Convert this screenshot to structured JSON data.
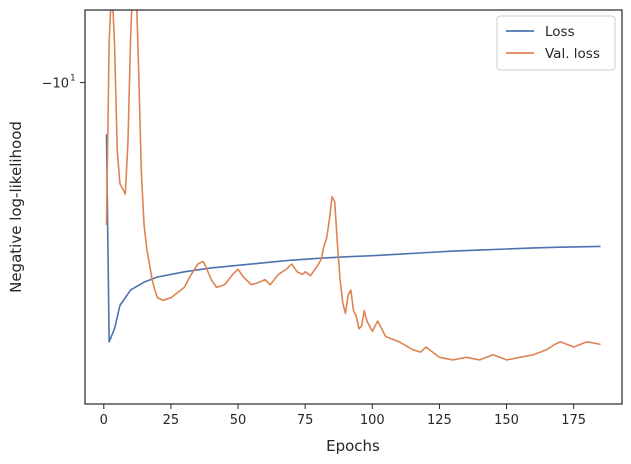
{
  "chart_data": {
    "type": "line",
    "title": "",
    "xlabel": "Epochs",
    "ylabel": "Negative log-likelihood",
    "xlim": [
      -7,
      193
    ],
    "ylim": [
      -7.2,
      -22.4
    ],
    "y_scale": "symlog-like (inverted, decreasing downward)",
    "grid": false,
    "legend_position": "top-right",
    "x_ticks": [
      0,
      25,
      50,
      75,
      100,
      125,
      150,
      175
    ],
    "x_tick_labels": [
      "0",
      "25",
      "50",
      "75",
      "100",
      "125",
      "150",
      "175"
    ],
    "y_ticks": [
      -10
    ],
    "y_tick_labels": [
      "−10"
    ],
    "y_tick_sup": "1",
    "series": [
      {
        "name": "Loss",
        "color": "#4c72b0",
        "x": [
          1,
          2,
          4,
          6,
          10,
          15,
          20,
          30,
          40,
          50,
          60,
          70,
          80,
          85,
          90,
          100,
          110,
          120,
          130,
          140,
          150,
          160,
          170,
          180,
          185
        ],
        "y": [
          -12.0,
          -20.0,
          -19.5,
          -18.6,
          -18.0,
          -17.7,
          -17.5,
          -17.3,
          -17.15,
          -17.05,
          -16.95,
          -16.85,
          -16.78,
          -16.75,
          -16.72,
          -16.68,
          -16.62,
          -16.56,
          -16.5,
          -16.46,
          -16.42,
          -16.38,
          -16.35,
          -16.33,
          -16.32
        ]
      },
      {
        "name": "Val. loss",
        "color": "#dd8452",
        "x": [
          1,
          2,
          3,
          4,
          5,
          6,
          8,
          9,
          10,
          11,
          12,
          13,
          14,
          15,
          16,
          17,
          18,
          19,
          20,
          22,
          25,
          30,
          32,
          35,
          37,
          38,
          40,
          42,
          45,
          48,
          50,
          52,
          55,
          58,
          60,
          62,
          65,
          68,
          70,
          72,
          74,
          75,
          77,
          80,
          81,
          82,
          83,
          84,
          85,
          86,
          87,
          88,
          89,
          90,
          91,
          92,
          93,
          94,
          95,
          96,
          97,
          98,
          100,
          102,
          105,
          110,
          115,
          118,
          120,
          125,
          130,
          135,
          140,
          145,
          150,
          155,
          160,
          165,
          168,
          170,
          175,
          180,
          185
        ],
        "y": [
          -15.5,
          -8.4,
          -6.2,
          -8.5,
          -12.6,
          -13.9,
          -14.3,
          -12.3,
          -8.2,
          -5.7,
          -6.1,
          -9.6,
          -13.5,
          -15.5,
          -16.4,
          -17.0,
          -17.6,
          -18.0,
          -18.3,
          -18.4,
          -18.3,
          -17.9,
          -17.5,
          -17.0,
          -16.9,
          -17.1,
          -17.6,
          -17.9,
          -17.8,
          -17.4,
          -17.2,
          -17.5,
          -17.8,
          -17.7,
          -17.6,
          -17.8,
          -17.4,
          -17.2,
          -17.0,
          -17.3,
          -17.4,
          -17.3,
          -17.45,
          -17.0,
          -16.8,
          -16.3,
          -16.0,
          -15.3,
          -14.4,
          -14.6,
          -16.2,
          -17.6,
          -18.5,
          -18.9,
          -18.2,
          -18.0,
          -18.8,
          -19.0,
          -19.5,
          -19.4,
          -18.8,
          -19.2,
          -19.6,
          -19.2,
          -19.8,
          -20.0,
          -20.3,
          -20.4,
          -20.2,
          -20.6,
          -20.7,
          -20.6,
          -20.7,
          -20.5,
          -20.7,
          -20.6,
          -20.5,
          -20.3,
          -20.1,
          -20.0,
          -20.2,
          -20.0,
          -20.1
        ]
      }
    ]
  }
}
